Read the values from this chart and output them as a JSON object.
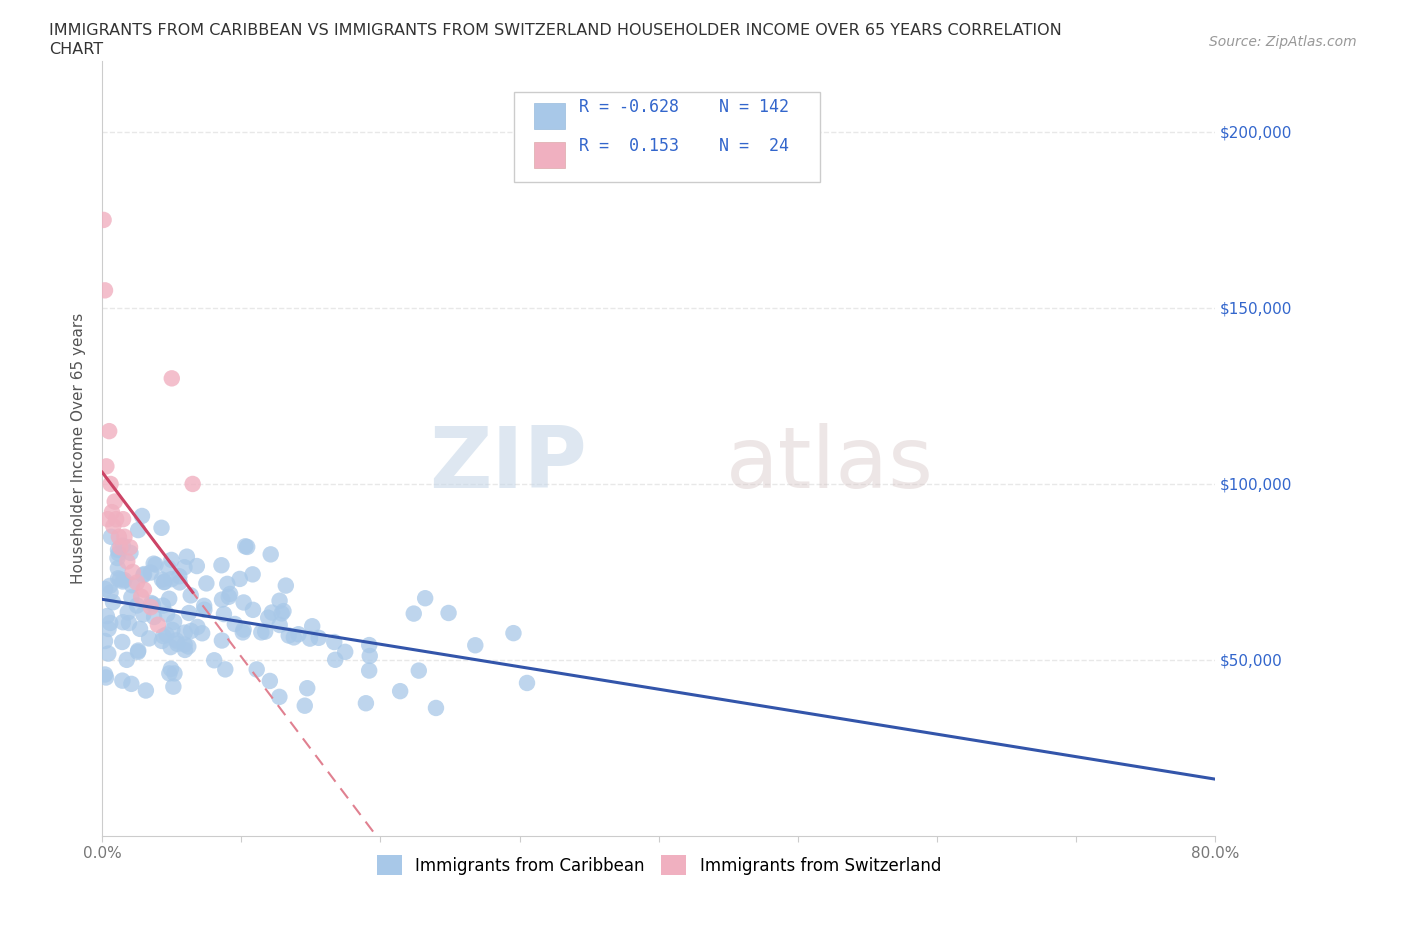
{
  "title_line1": "IMMIGRANTS FROM CARIBBEAN VS IMMIGRANTS FROM SWITZERLAND HOUSEHOLDER INCOME OVER 65 YEARS CORRELATION",
  "title_line2": "CHART",
  "source": "Source: ZipAtlas.com",
  "ylabel": "Householder Income Over 65 years",
  "xlim": [
    0,
    0.8
  ],
  "ylim": [
    0,
    220000
  ],
  "xtick_pos": [
    0.0,
    0.1,
    0.2,
    0.3,
    0.4,
    0.5,
    0.6,
    0.7,
    0.8
  ],
  "xticklabels": [
    "0.0%",
    "",
    "",
    "",
    "",
    "",
    "",
    "",
    "80.0%"
  ],
  "ytick_positions": [
    50000,
    100000,
    150000,
    200000
  ],
  "ytick_labels": [
    "$50,000",
    "$100,000",
    "$150,000",
    "$200,000"
  ],
  "caribbean_R": -0.628,
  "caribbean_N": 142,
  "switzerland_R": 0.153,
  "switzerland_N": 24,
  "caribbean_color": "#a8c8e8",
  "caribbean_line_color": "#3355aa",
  "switzerland_color": "#f0b0c0",
  "switzerland_line_color": "#cc4466",
  "switzerland_dash_color": "#e08090",
  "legend_text_color": "#3366cc",
  "legend_Ncolor": "#3366cc",
  "watermark_zip": "ZIP",
  "watermark_atlas": "atlas",
  "background_color": "#ffffff",
  "grid_color": "#e8e8e8",
  "title_color": "#333333",
  "source_color": "#999999",
  "ylabel_color": "#555555",
  "tick_label_color": "#777777",
  "right_tick_color": "#3366cc"
}
